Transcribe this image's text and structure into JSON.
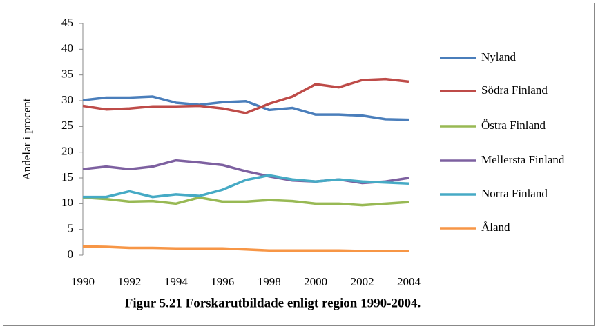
{
  "chart_data": {
    "type": "line",
    "title": "Figur 5.21 Forskarutbildade enligt region 1990-2004.",
    "y_label": "Andelar i procent",
    "x": [
      1990,
      1991,
      1992,
      1993,
      1994,
      1995,
      1996,
      1997,
      1998,
      1999,
      2000,
      2001,
      2002,
      2003,
      2004
    ],
    "xlim": [
      1990,
      2004
    ],
    "xticks": [
      1990,
      1992,
      1994,
      1996,
      1998,
      2000,
      2002,
      2004
    ],
    "ylim": [
      0,
      45
    ],
    "yticks": [
      0,
      5,
      10,
      15,
      20,
      25,
      30,
      35,
      40,
      45
    ],
    "legend": "right",
    "series": [
      {
        "name": "Nyland",
        "color": "#4a7ebb",
        "values": [
          30.1,
          30.6,
          30.6,
          30.8,
          29.6,
          29.2,
          29.7,
          29.9,
          28.2,
          28.6,
          27.3,
          27.3,
          27.1,
          26.4,
          26.3
        ]
      },
      {
        "name": "Södra Finland",
        "color": "#be4b48",
        "values": [
          29.0,
          28.3,
          28.5,
          28.9,
          28.9,
          29.0,
          28.5,
          27.6,
          29.4,
          30.8,
          33.2,
          32.6,
          34.0,
          34.2,
          33.7
        ]
      },
      {
        "name": "Östra Finland",
        "color": "#98b954",
        "values": [
          11.2,
          10.9,
          10.4,
          10.5,
          10.0,
          11.2,
          10.4,
          10.4,
          10.7,
          10.5,
          10.0,
          10.0,
          9.7,
          10.0,
          10.3
        ]
      },
      {
        "name": "Mellersta Finland",
        "color": "#7d60a0",
        "values": [
          16.7,
          17.2,
          16.7,
          17.2,
          18.4,
          18.0,
          17.5,
          16.3,
          15.3,
          14.5,
          14.3,
          14.7,
          14.0,
          14.3,
          15.0
        ]
      },
      {
        "name": "Norra Finland",
        "color": "#46aac5",
        "values": [
          11.3,
          11.3,
          12.4,
          11.3,
          11.8,
          11.5,
          12.7,
          14.6,
          15.5,
          14.7,
          14.3,
          14.7,
          14.3,
          14.1,
          13.9
        ]
      },
      {
        "name": "Åland",
        "color": "#f79646",
        "values": [
          1.7,
          1.6,
          1.4,
          1.4,
          1.3,
          1.3,
          1.3,
          1.1,
          0.9,
          0.9,
          0.9,
          0.9,
          0.8,
          0.8,
          0.8
        ]
      }
    ]
  }
}
